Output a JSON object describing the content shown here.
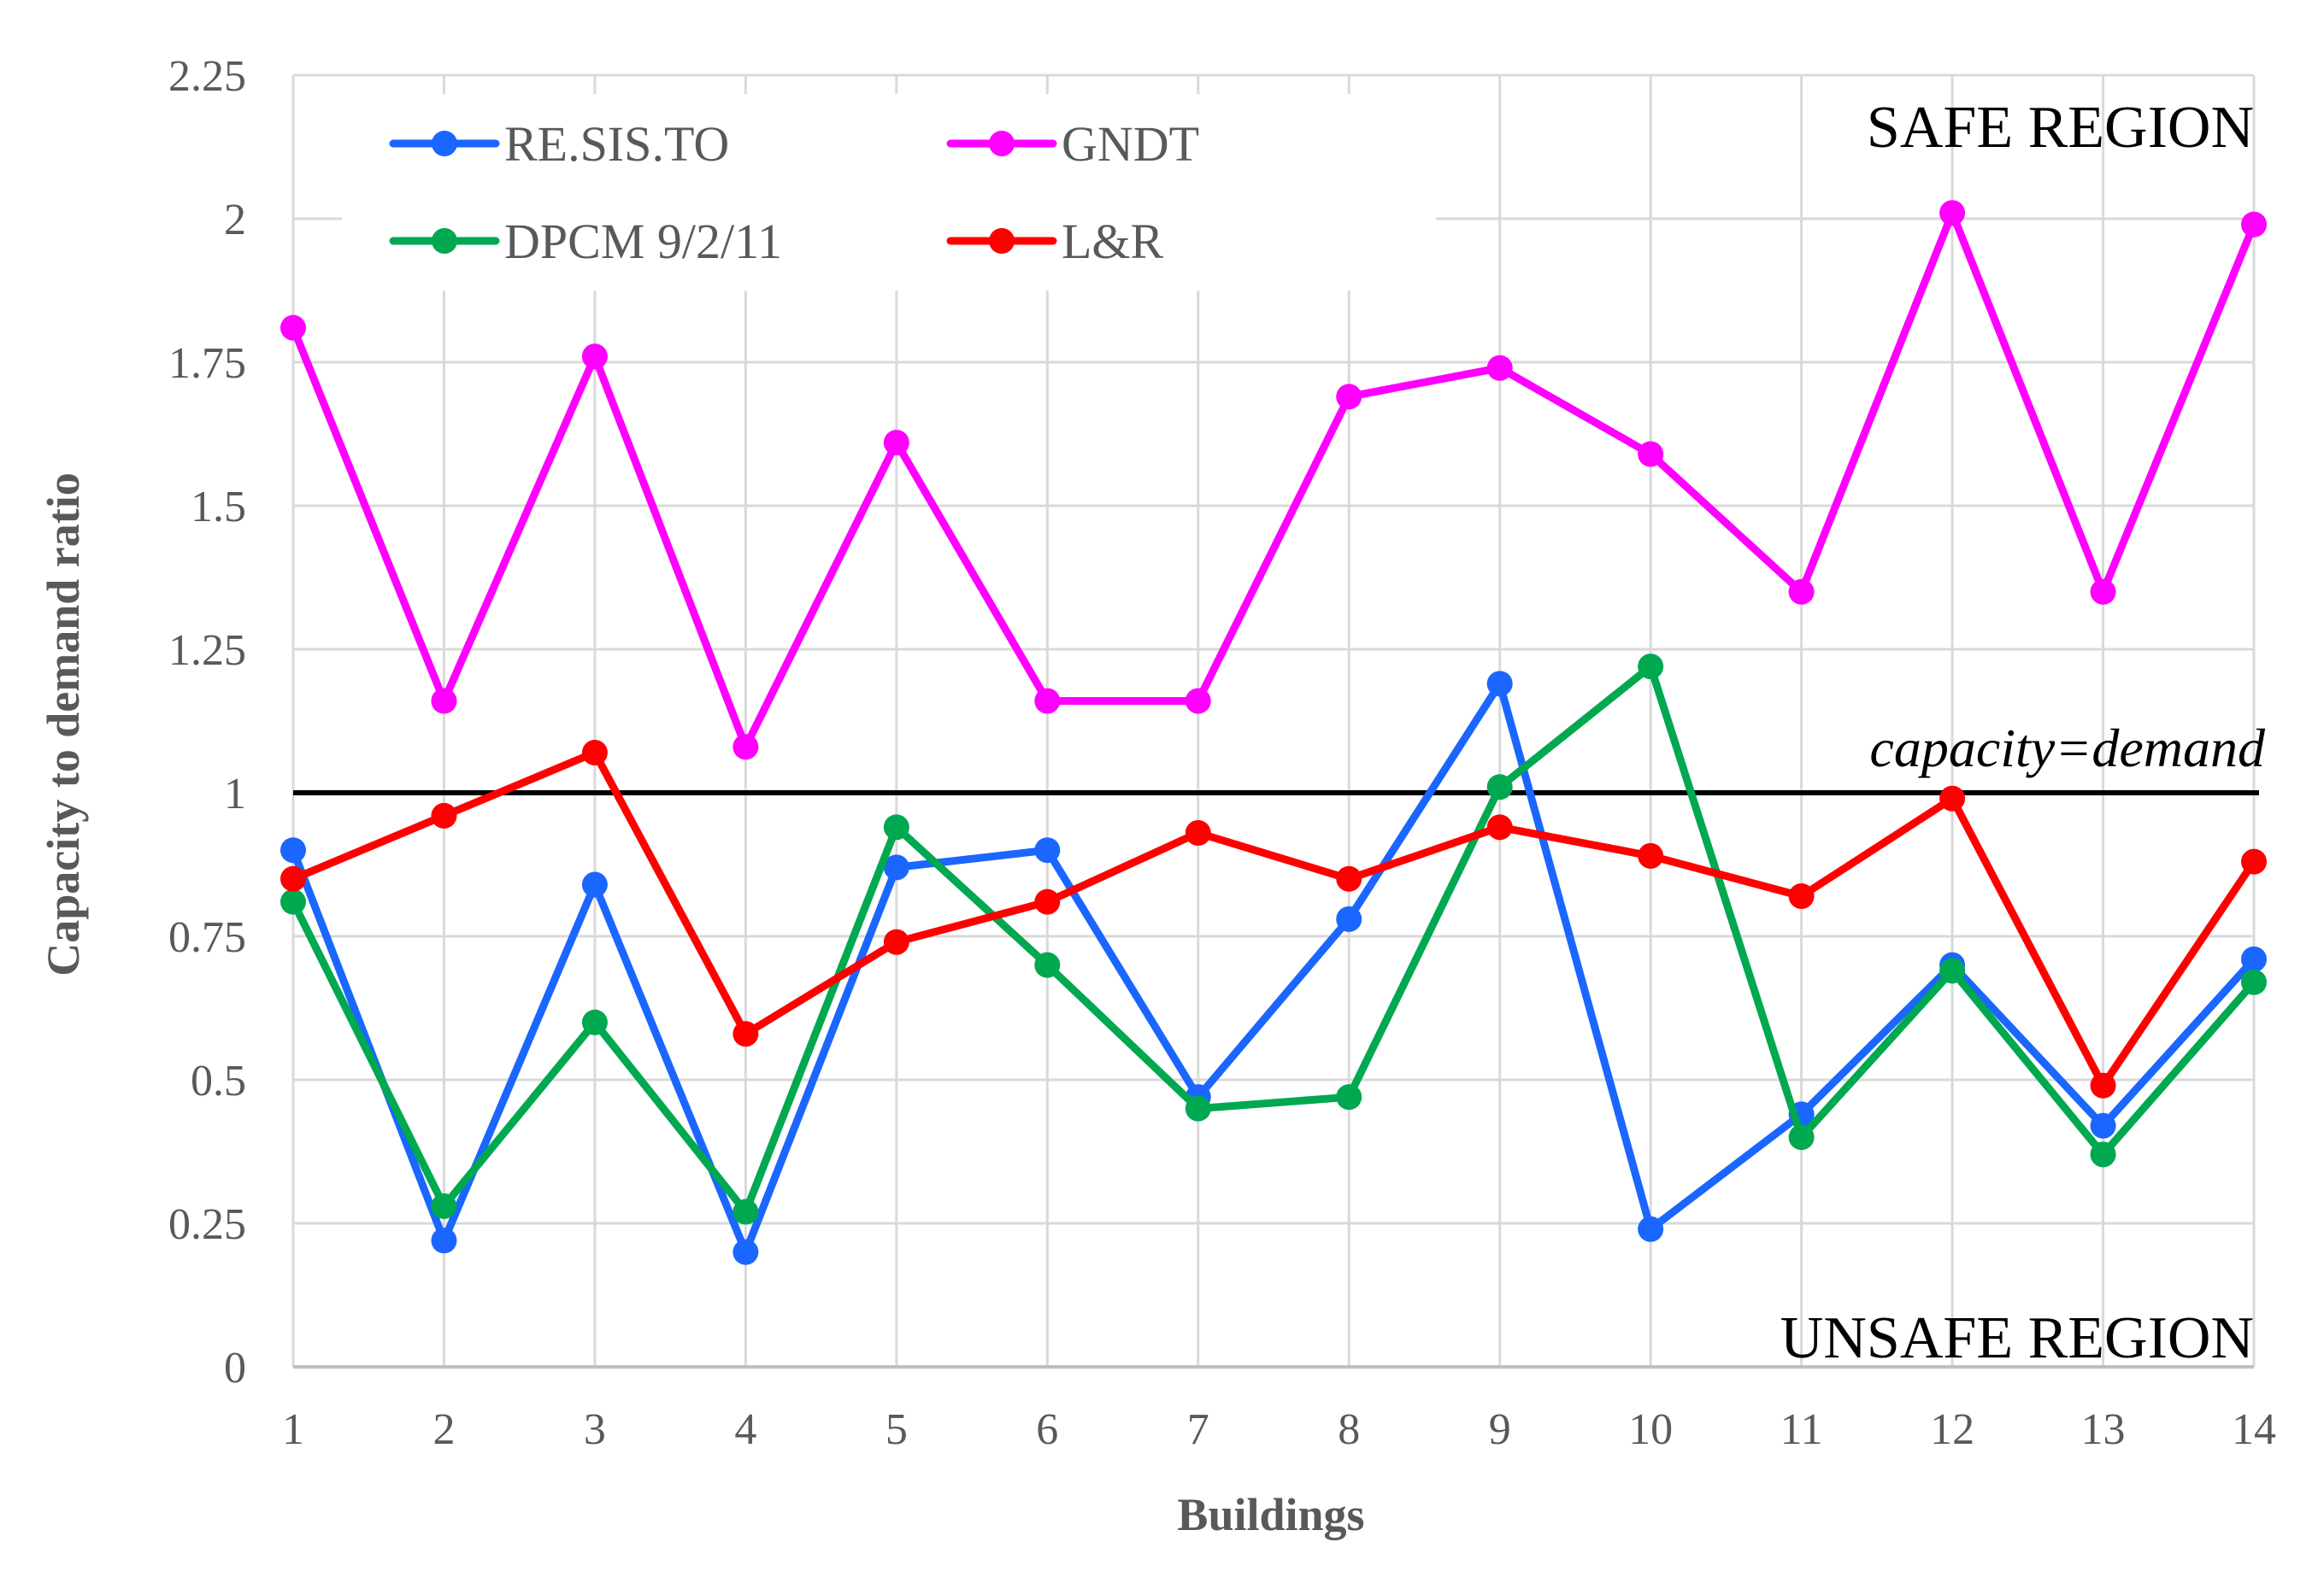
{
  "chart_data": {
    "type": "line",
    "title": "",
    "xlabel": "Buildings",
    "ylabel": "Capacity to demand ratio",
    "categories": [
      "1",
      "2",
      "3",
      "4",
      "5",
      "6",
      "7",
      "8",
      "9",
      "10",
      "11",
      "12",
      "13",
      "14"
    ],
    "yticks": [
      "0",
      "0.25",
      "0.5",
      "0.75",
      "1",
      "1.25",
      "1.5",
      "1.75",
      "2",
      "2.25"
    ],
    "ylim": [
      0,
      2.25
    ],
    "grid": true,
    "legend_position": "top-left",
    "series": [
      {
        "name": "RE.SIS.TO",
        "color": "#1a66ff",
        "values": [
          0.9,
          0.22,
          0.84,
          0.2,
          0.87,
          0.9,
          0.47,
          0.78,
          1.19,
          0.24,
          0.44,
          0.7,
          0.42,
          0.71
        ]
      },
      {
        "name": "GNDT",
        "color": "#ff00ff",
        "values": [
          1.81,
          1.16,
          1.76,
          1.08,
          1.61,
          1.16,
          1.16,
          1.69,
          1.74,
          1.59,
          1.35,
          2.01,
          1.35,
          1.99
        ]
      },
      {
        "name": "DPCM 9/2/11",
        "color": "#00a850",
        "values": [
          0.81,
          0.28,
          0.6,
          0.27,
          0.94,
          0.7,
          0.45,
          0.47,
          1.01,
          1.22,
          0.4,
          0.69,
          0.37,
          0.67
        ]
      },
      {
        "name": "L&R",
        "color": "#ff0000",
        "values": [
          0.85,
          0.96,
          1.07,
          0.58,
          0.74,
          0.81,
          0.93,
          0.85,
          0.94,
          0.89,
          0.82,
          0.99,
          0.49,
          0.88
        ]
      }
    ],
    "reference_line": {
      "value": 1,
      "label": "capacity=demand",
      "color": "#000000"
    },
    "annotations": {
      "safe": "SAFE REGION",
      "unsafe": "UNSAFE REGION"
    }
  }
}
